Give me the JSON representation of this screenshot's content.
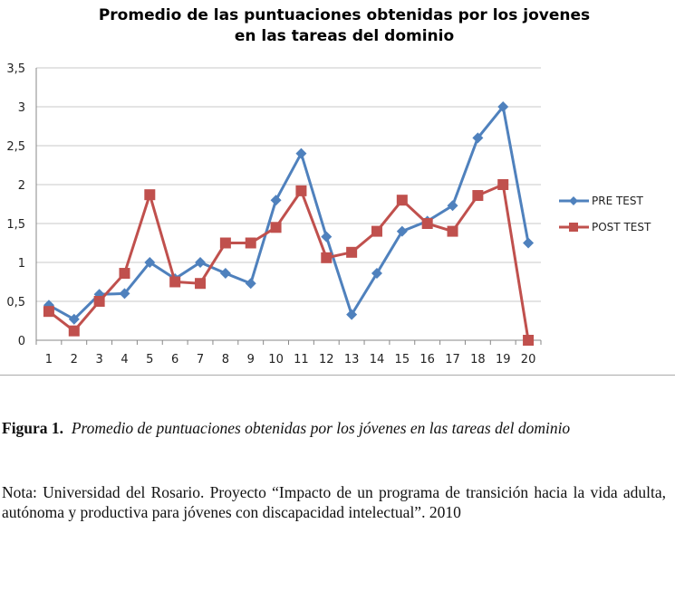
{
  "chart_data": {
    "type": "line",
    "title": [
      "Promedio de las puntuaciones obtenidas por los jovenes",
      "en las tareas del dominio"
    ],
    "categories": [
      "1",
      "2",
      "3",
      "4",
      "5",
      "6",
      "7",
      "8",
      "9",
      "10",
      "11",
      "12",
      "13",
      "14",
      "15",
      "16",
      "17",
      "18",
      "19",
      "20"
    ],
    "ylim": [
      0,
      3.5
    ],
    "yticks": [
      "0",
      "0,5",
      "1",
      "1,5",
      "2",
      "2,5",
      "3",
      "3,5"
    ],
    "grid": true,
    "legend_position": "right",
    "series": [
      {
        "name": "PRE TEST",
        "color": "#4F81BD",
        "marker": "diamond",
        "values": [
          0.45,
          0.27,
          0.59,
          0.6,
          1.0,
          0.79,
          1.0,
          0.86,
          0.73,
          1.8,
          2.4,
          1.33,
          0.33,
          0.86,
          1.4,
          1.53,
          1.73,
          2.6,
          3.0,
          1.25
        ]
      },
      {
        "name": "POST TEST",
        "color": "#C0504D",
        "marker": "square",
        "values": [
          0.37,
          0.12,
          0.5,
          0.86,
          1.87,
          0.75,
          0.73,
          1.25,
          1.25,
          1.45,
          1.92,
          1.06,
          1.13,
          1.4,
          1.8,
          1.5,
          1.4,
          1.86,
          2.0,
          0
        ]
      }
    ]
  },
  "caption": {
    "label": "Figura 1.",
    "text": "Promedio de puntuaciones obtenidas por los jóvenes en las tareas del dominio"
  },
  "note": "Nota: Universidad del Rosario. Proyecto “Impacto de un programa  de transición hacia la vida adulta, autónoma y productiva para jóvenes con discapacidad intelectual”. 2010"
}
